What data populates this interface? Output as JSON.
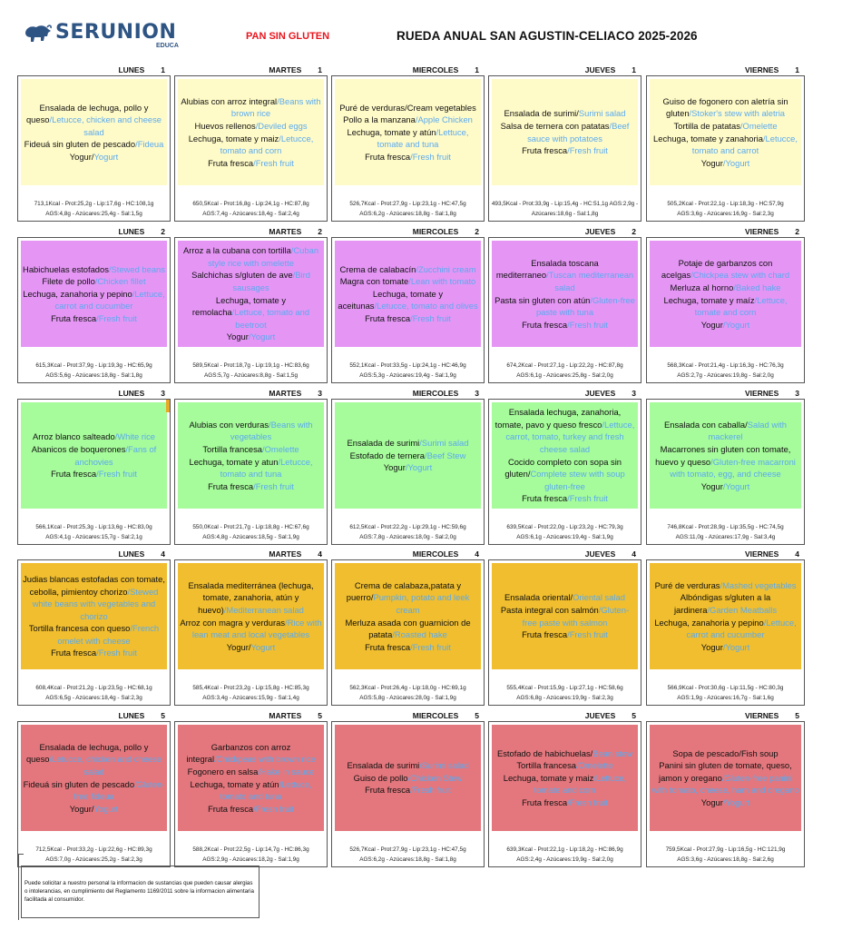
{
  "header": {
    "brand": "SERUNION",
    "brand_sub": "EDUCA",
    "subtitle": "PAN SIN GLUTEN",
    "title": "RUEDA ANUAL SAN AGUSTIN-CELIACO 2025-2026"
  },
  "colors": {
    "brand": "#2e5484",
    "subtitle": "#e8141c",
    "english_text": "#5aaaf0",
    "week_1": "#fffbc8",
    "week_2": "#e596f5",
    "week_3": "#a6fb9b",
    "week_4": "#f0be2e",
    "week_5": "#e3777d"
  },
  "weeks": [
    {
      "number": "1",
      "days": [
        {
          "day": "LUNES",
          "num": "1",
          "items": [
            {
              "es": "Ensalada de lechuga, pollo y queso",
              "en": "/Letucce, chicken and cheese salad"
            },
            {
              "es": "Fideuá sin gluten de pescado",
              "en": "/Fideua"
            },
            {
              "es": "Yogur/",
              "en": "Yogurt"
            }
          ],
          "nutr1": "713,1Kcal - Prot:25,2g - Lip:17,6g - HC:108,1g",
          "nutr2": "AGS:4,8g - Azúcares:25,4g - Sal:1,5g"
        },
        {
          "day": "MARTES",
          "num": "1",
          "items": [
            {
              "es": "Alubias con arroz integral",
              "en": "/Beans with brown rice"
            },
            {
              "es": "Huevos rellenos",
              "en": "/Deviled eggs"
            },
            {
              "es": "Lechuga, tomate y maiz",
              "en": "/Letucce, tomato and corn"
            },
            {
              "es": "Fruta fresca",
              "en": "/Fresh fruit"
            }
          ],
          "nutr1": "650,5Kcal - Prot:16,8g - Lip:24,1g - HC:87,8g",
          "nutr2": "AGS:7,4g - Azúcares:18,4g - Sal:2,4g"
        },
        {
          "day": "MIERCOLES",
          "num": "1",
          "items": [
            {
              "es": "Puré de verduras/Cream vegetables",
              "en": ""
            },
            {
              "es": "Pollo a la manzana",
              "en": "/Apple Chicken"
            },
            {
              "es": "Lechuga, tomate y atún",
              "en": "/Lettuce, tomate and tuna"
            },
            {
              "es": "Fruta fresca",
              "en": "/Fresh fruit"
            }
          ],
          "nutr1": "526,7Kcal - Prot:27,9g - Lip:23,1g - HC:47,5g",
          "nutr2": "AGS:6,2g - Azúcares:18,8g - Sal:1,8g"
        },
        {
          "day": "JUEVES",
          "num": "1",
          "items": [
            {
              "es": "Ensalada de surimi/",
              "en": "Surimi salad"
            },
            {
              "es": "Salsa de ternera con patatas",
              "en": "/Beef sauce with potatoes"
            },
            {
              "es": "Fruta fresca",
              "en": "/Fresh fruit"
            }
          ],
          "nutr1": "493,5Kcal - Prot:33,9g - Lip:15,4g - HC:51,1g AGS:2,9g -",
          "nutr2": "Azúcares:18,6g - Sal:1,8g"
        },
        {
          "day": "VIERNES",
          "num": "1",
          "items": [
            {
              "es": "Guiso de fogonero con aletría sin gluten",
              "en": "/Stoker's stew with aletria"
            },
            {
              "es": "Tortilla de patatas",
              "en": "/Omelette"
            },
            {
              "es": "Lechuga, tomate y zanahoria",
              "en": "/Letucce, tomato and carrot"
            },
            {
              "es": "Yogur",
              "en": "/Yogurt"
            }
          ],
          "nutr1": "505,2Kcal - Prot:22,1g - Lip:18,3g - HC:57,9g",
          "nutr2": "AGS:3,6g - Azúcares:16,9g - Sal:2,3g"
        }
      ]
    },
    {
      "number": "2",
      "days": [
        {
          "day": "LUNES",
          "num": "2",
          "items": [
            {
              "es": "Habichuelas estofados",
              "en": "/Stewed beans"
            },
            {
              "es": "Filete de pollo",
              "en": "/Chicken fillet"
            },
            {
              "es": "Lechuga, zanahoria y pepino",
              "en": "/Lettuce, carrot and cucumber"
            },
            {
              "es": "Fruta fresca",
              "en": "/Fresh fruit"
            }
          ],
          "nutr1": "615,3Kcal - Prot:37,9g - Lip:19,3g - HC:65,9g",
          "nutr2": "AGS:5,6g - Azúcares:18,8g - Sal:1,8g"
        },
        {
          "day": "MARTES",
          "num": "2",
          "items": [
            {
              "es": "Arroz a la cubana con tortilla",
              "en": "/Cuban style rice with omelette"
            },
            {
              "es": "Salchichas s/gluten de ave",
              "en": "/Bird sausages"
            },
            {
              "es": "Lechuga, tomate y remolacha",
              "en": "/Lettuce, tomato and beetroot"
            },
            {
              "es": "Yogur",
              "en": "/Yogurt"
            }
          ],
          "nutr1": "589,5Kcal - Prot:18,7g - Lip:19,1g - HC:83,6g",
          "nutr2": "AGS:5,7g - Azúcares:8,8g - Sal:1,5g"
        },
        {
          "day": "MIERCOLES",
          "num": "2",
          "items": [
            {
              "es": "Crema de calabacín",
              "en": "/Zucchini cream"
            },
            {
              "es": "Magra con tomate",
              "en": "/Lean with tomato"
            },
            {
              "es": "Lechuga, tomate y aceitunas",
              "en": "/Letucce, tomato and olives"
            },
            {
              "es": "Fruta fresca",
              "en": "/Fresh fruit"
            }
          ],
          "nutr1": "552,1Kcal - Prot:33,5g - Lip:24,1g - HC:46,9g",
          "nutr2": "AGS:5,3g - Azúcares:19,4g - Sal:1,9g"
        },
        {
          "day": "JUEVES",
          "num": "2",
          "items": [
            {
              "es": "Ensalada toscana mediterraneo",
              "en": "/Tuscan mediterranean salad"
            },
            {
              "es": "Pasta sin gluten con atún",
              "en": "/Gluten-free paste with tuna"
            },
            {
              "es": "Fruta fresca",
              "en": "/Fresh fruit"
            }
          ],
          "nutr1": "674,2Kcal - Prot:27,1g - Lip:22,2g - HC:87,8g",
          "nutr2": "AGS:6,1g - Azúcares:25,8g - Sal:2,0g"
        },
        {
          "day": "VIERNES",
          "num": "2",
          "items": [
            {
              "es": "Potaje de garbanzos con acelgas",
              "en": "/Chickpea stew with chard"
            },
            {
              "es": "Merluza al horno",
              "en": "/Baked hake"
            },
            {
              "es": "Lechuga, tomate y maíz",
              "en": "/Lettuce, tomate and corn"
            },
            {
              "es": "Yogur",
              "en": "/Yogurt"
            }
          ],
          "nutr1": "568,3Kcal - Prot:21,4g - Lip:16,3g - HC:76,3g",
          "nutr2": "AGS:2,7g - Azúcares:19,8g - Sal:2,0g"
        }
      ]
    },
    {
      "number": "3",
      "days": [
        {
          "day": "LUNES",
          "num": "3",
          "items": [
            {
              "es": "Arroz blanco salteado",
              "en": "/White rice"
            },
            {
              "es": "Abanicos de boquerones",
              "en": "/Fans of anchovies"
            },
            {
              "es": "Fruta fresca",
              "en": "/Fresh fruit"
            }
          ],
          "nutr1": "566,1Kcal - Prot:25,3g - Lip:13,6g - HC:83,0g",
          "nutr2": "AGS:4,1g - Azúcares:15,7g - Sal:2,1g"
        },
        {
          "day": "MARTES",
          "num": "3",
          "items": [
            {
              "es": "Alubias con verduras",
              "en": "/Beans with vegetables"
            },
            {
              "es": "Tortilla francesa",
              "en": "/Omelette"
            },
            {
              "es": "Lechuga, tomate y atun",
              "en": "/Letucce, tomato and tuna"
            },
            {
              "es": "Fruta fresca",
              "en": "/Fresh fruit"
            }
          ],
          "nutr1": "550,0Kcal - Prot:21,7g - Lip:18,8g - HC:67,6g",
          "nutr2": "AGS:4,8g - Azúcares:18,5g - Sal:1,9g"
        },
        {
          "day": "MIERCOLES",
          "num": "3",
          "items": [
            {
              "es": "Ensalada de surimi",
              "en": "/Surimi salad"
            },
            {
              "es": "Estofado de ternera",
              "en": "/Beef Stew"
            },
            {
              "es": "Yogur",
              "en": "/Yogurt"
            }
          ],
          "nutr1": "612,5Kcal - Prot:22,2g - Lip:29,1g - HC:59,6g",
          "nutr2": "AGS:7,8g - Azúcares:18,0g - Sal:2,0g"
        },
        {
          "day": "JUEVES",
          "num": "3",
          "items": [
            {
              "es": "Ensalada lechuga, zanahoria, tomate, pavo y queso fresco",
              "en": "/Lettuce, carrot, tomato, turkey and fresh cheese salad"
            },
            {
              "es": "Cocido completo con sopa sin gluten/",
              "en": "Complete stew with soup gluten-free"
            },
            {
              "es": "Fruta fresca",
              "en": "/Fresh fruit"
            }
          ],
          "nutr1": "639,5Kcal - Prot:22,0g - Lip:23,2g - HC:79,3g",
          "nutr2": "AGS:6,1g - Azúcares:19,4g - Sal:1,9g"
        },
        {
          "day": "VIERNES",
          "num": "3",
          "items": [
            {
              "es": "Ensalada con caballa/",
              "en": "Salad with mackerel"
            },
            {
              "es": "Macarrones sin gluten con tomate, huevo y queso",
              "en": "/Gluten-free macarroni with tomato, egg, and cheese"
            },
            {
              "es": "Yogur",
              "en": "/Yogurt"
            }
          ],
          "nutr1": "746,8Kcal - Prot:28,9g - Lip:35,5g - HC:74,5g",
          "nutr2": "AGS:11,0g - Azúcares:17,9g - Sal:3,4g"
        }
      ]
    },
    {
      "number": "4",
      "days": [
        {
          "day": "LUNES",
          "num": "4",
          "items": [
            {
              "es": "Judias blancas estofadas con tomate, cebolla, pimientoy chorizo",
              "en": "/Stewed white beans with vegetables and chorizo"
            },
            {
              "es": "Tortilla francesa con queso",
              "en": "/French omelet with cheese"
            },
            {
              "es": "Fruta fresca",
              "en": "/Fresh fruit"
            }
          ],
          "nutr1": "608,4Kcal - Prot:21,2g - Lip:23,5g - HC:68,1g",
          "nutr2": "AGS:6,5g - Azúcares:18,4g - Sal:2,3g"
        },
        {
          "day": "MARTES",
          "num": "4",
          "items": [
            {
              "es": "Ensalada mediterránea (lechuga, tomate, zanahoria, atún y huevo)",
              "en": "/Mediterranean salad"
            },
            {
              "es": "Arroz con magra y verduras",
              "en": "/Rice with lean meat and local vegetables"
            },
            {
              "es": "Yogur/",
              "en": "Yogurt"
            }
          ],
          "nutr1": "585,4Kcal - Prot:23,2g - Lip:15,8g - HC:85,3g",
          "nutr2": "AGS:3,4g - Azúcares:15,9g - Sal:1,4g"
        },
        {
          "day": "MIERCOLES",
          "num": "4",
          "items": [
            {
              "es": "Crema de calabaza,patata y puerro/",
              "en": "Pumpkin, potato and leek cream"
            },
            {
              "es": "Merluza asada con guarnicion de patata",
              "en": "/Roasted hake"
            },
            {
              "es": "Fruta fresca",
              "en": "/Fresh fruit"
            }
          ],
          "nutr1": "562,3Kcal - Prot:26,4g - Lip:18,0g - HC:69,1g",
          "nutr2": "AGS:5,8g - Azúcares:28,0g - Sal:1,9g"
        },
        {
          "day": "JUEVES",
          "num": "4",
          "items": [
            {
              "es": "Ensalada oriental/",
              "en": "Oriental salad"
            },
            {
              "es": "Pasta integral con salmón",
              "en": "/Gluten-free paste with salmon"
            },
            {
              "es": "Fruta fresca",
              "en": "/Fresh fruit"
            }
          ],
          "nutr1": "555,4Kcal - Prot:15,9g - Lip:27,1g - HC:58,6g",
          "nutr2": "AGS:6,8g - Azúcares:19,9g - Sal:2,3g"
        },
        {
          "day": "VIERNES",
          "num": "4",
          "items": [
            {
              "es": "Puré de verduras",
              "en": "/Mashed vegetables"
            },
            {
              "es": "Albóndigas s/gluten a la jardinera",
              "en": "/Garden Meatballs"
            },
            {
              "es": "Lechuga, zanahoria y pepino",
              "en": "/Lettuce, carrot and cucumber"
            },
            {
              "es": "Yogur",
              "en": "/Yogurt"
            }
          ],
          "nutr1": "566,9Kcal - Prot:30,6g - Lip:11,5g - HC:80,3g",
          "nutr2": "AGS:1,9g - Azúcares:16,7g - Sal:1,6g"
        }
      ]
    },
    {
      "number": "5",
      "days": [
        {
          "day": "LUNES",
          "num": "5",
          "items": [
            {
              "es": "Ensalada de lechuga, pollo y queso",
              "en": "/Letucce, chicken and cheese salad"
            },
            {
              "es": "Fideuá sin gluten de pescado",
              "en": "/Gluten-free fideua"
            },
            {
              "es": "Yogur/",
              "en": "Yogurt"
            }
          ],
          "nutr1": "712,5Kcal - Prot:33,2g - Lip:22,6g - HC:89,3g",
          "nutr2": "AGS:7,0g - Azúcares:25,2g - Sal:2,3g"
        },
        {
          "day": "MARTES",
          "num": "5",
          "items": [
            {
              "es": "Garbanzos con arroz integral",
              "en": "/Chickpeas with brown rice"
            },
            {
              "es": "Fogonero en salsa",
              "en": "/Hake in sauce"
            },
            {
              "es": "Lechuga, tomate y atún",
              "en": "/Lettuce, tomato and tuna"
            },
            {
              "es": "Fruta fresca",
              "en": "/Fresh fruit"
            }
          ],
          "nutr1": "588,2Kcal - Prot:22,5g - Lip:14,7g - HC:86,3g",
          "nutr2": "AGS:2,9g - Azúcares:18,2g - Sal:1,9g"
        },
        {
          "day": "MIERCOLES",
          "num": "5",
          "items": [
            {
              "es": "Ensalada de surimi",
              "en": "/Surimi salad"
            },
            {
              "es": "Guiso de pollo",
              "en": "/Chicken Stew"
            },
            {
              "es": "Fruta fresca",
              "en": "/Fresh fruit"
            }
          ],
          "nutr1": "526,7Kcal - Prot:27,9g - Lip:23,1g - HC:47,5g",
          "nutr2": "AGS:6,2g - Azúcares:18,8g - Sal:1,8g"
        },
        {
          "day": "JUEVES",
          "num": "5",
          "items": [
            {
              "es": "Estofado de habichuelas/",
              "en": "Bean stew"
            },
            {
              "es": "Tortilla francesa",
              "en": "/Omelette"
            },
            {
              "es": "Lechuga, tomate y maiz",
              "en": "/Lettuce, tomate and corn"
            },
            {
              "es": "Fruta fresca",
              "en": "/Fresh fruit"
            }
          ],
          "nutr1": "639,3Kcal - Prot:22,1g - Lip:18,2g - HC:86,9g",
          "nutr2": "AGS:2,4g - Azúcares:19,9g - Sal:2,0g"
        },
        {
          "day": "VIERNES",
          "num": "5",
          "items": [
            {
              "es": "Sopa de pescado/Fish soup",
              "en": ""
            },
            {
              "es": "Panini sin gluten de tomate, queso, jamon y oregano",
              "en": "/Gluten-free panini with tomato, cheese, ham and oregano"
            },
            {
              "es": "Yogur",
              "en": "/Yogurt"
            }
          ],
          "nutr1": "759,5Kcal - Prot:27,9g - Lip:16,5g - HC:121,9g",
          "nutr2": "AGS:3,6g - Azúcares:18,8g - Sal:2,6g"
        }
      ]
    }
  ],
  "footer": {
    "notice": "Puede solicitar a nuestro personal la informacion de sustancias que pueden causar alergias o intolerancias, en cumplimiento del Reglamento 1169/2011 sobre la informacion alimentaria facilitada al consumidor."
  }
}
